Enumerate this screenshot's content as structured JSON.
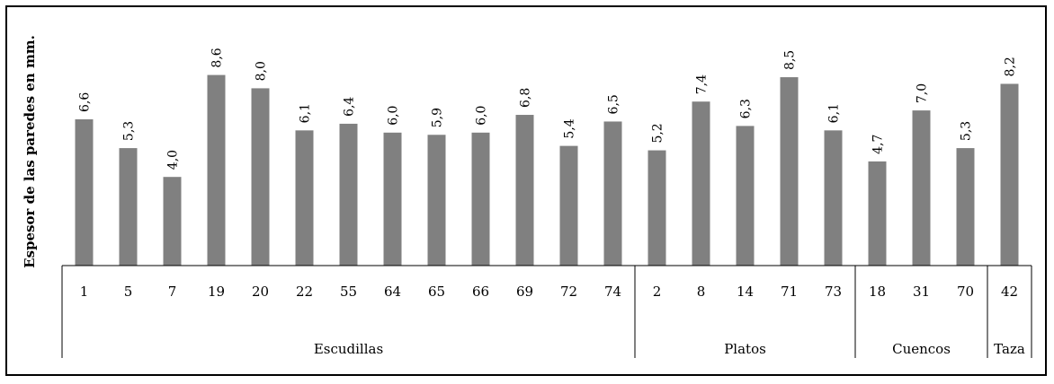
{
  "chart_data": {
    "type": "bar",
    "title": "",
    "ylabel": "Espesor de las paredes en mm.",
    "ylim": [
      0,
      10
    ],
    "grid": false,
    "legend": "none",
    "bar_color": "#808080",
    "categories": [
      "1",
      "5",
      "7",
      "19",
      "20",
      "22",
      "55",
      "64",
      "65",
      "66",
      "69",
      "72",
      "74",
      "2",
      "8",
      "14",
      "71",
      "73",
      "18",
      "31",
      "70",
      "42"
    ],
    "values": [
      6.6,
      5.3,
      4.0,
      8.6,
      8.0,
      6.1,
      6.4,
      6.0,
      5.9,
      6.0,
      6.8,
      5.4,
      6.5,
      5.2,
      7.4,
      6.3,
      8.5,
      6.1,
      4.7,
      7.0,
      5.3,
      8.2
    ],
    "value_labels": [
      "6,6",
      "5,3",
      "4,0",
      "8,6",
      "8,0",
      "6,1",
      "6,4",
      "6,0",
      "5,9",
      "6,0",
      "6,8",
      "5,4",
      "6,5",
      "5,2",
      "7,4",
      "6,3",
      "8,5",
      "6,1",
      "4,7",
      "7,0",
      "5,3",
      "8,2"
    ],
    "groups": [
      {
        "name": "Escudillas",
        "count": 13
      },
      {
        "name": "Platos",
        "count": 5
      },
      {
        "name": "Cuencos",
        "count": 3
      },
      {
        "name": "Taza",
        "count": 1
      }
    ]
  }
}
